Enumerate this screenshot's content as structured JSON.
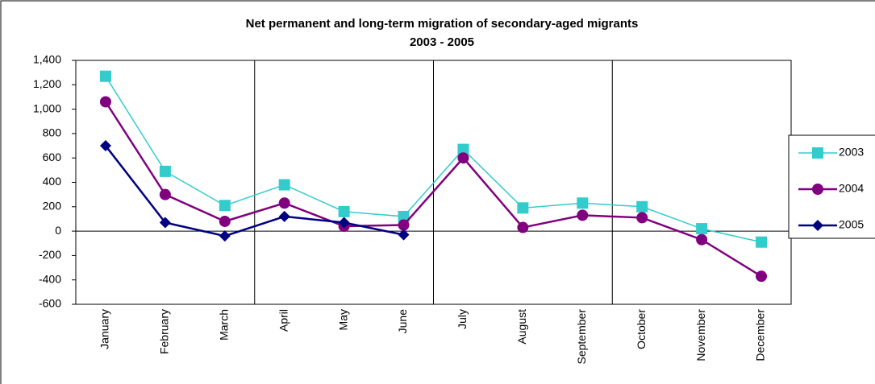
{
  "chart_data": {
    "type": "line",
    "title": "Net permanent and long-term migration of secondary-aged migrants",
    "subtitle": "2003 - 2005",
    "categories": [
      "January",
      "February",
      "March",
      "April",
      "May",
      "June",
      "July",
      "August",
      "September",
      "October",
      "November",
      "December"
    ],
    "series": [
      {
        "name": "2003",
        "color": "#33cccc",
        "marker": "square",
        "values": [
          1270,
          490,
          210,
          380,
          160,
          120,
          670,
          190,
          230,
          200,
          20,
          -90
        ]
      },
      {
        "name": "2004",
        "color": "#800080",
        "marker": "circle",
        "values": [
          1060,
          300,
          80,
          230,
          40,
          50,
          600,
          30,
          130,
          110,
          -70,
          -370
        ]
      },
      {
        "name": "2005",
        "color": "#000080",
        "marker": "diamond",
        "values": [
          700,
          70,
          -40,
          120,
          70,
          -30,
          null,
          null,
          null,
          null,
          null,
          null
        ]
      }
    ],
    "ylim": [
      -600,
      1400
    ],
    "yticks": [
      {
        "value": -600,
        "label": "-600"
      },
      {
        "value": -400,
        "label": "-400"
      },
      {
        "value": -200,
        "label": "-200"
      },
      0,
      200,
      400,
      600,
      800,
      {
        "value": 1000,
        "label": "1,000"
      },
      {
        "value": 1200,
        "label": "1,200"
      },
      {
        "value": 1400,
        "label": "1,400"
      }
    ],
    "legend": "right"
  }
}
